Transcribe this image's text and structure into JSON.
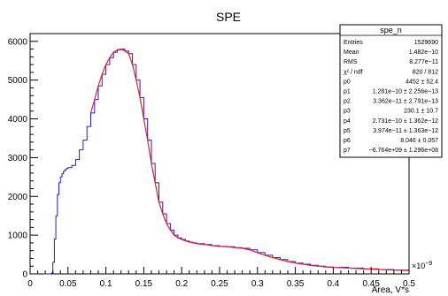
{
  "chart_data": {
    "type": "line",
    "title": "SPE",
    "xlabel": "Area, V*s",
    "ylabel": "",
    "x_exponent_label": "×10",
    "x_exponent_power": "−9",
    "xlim": [
      0,
      0.5
    ],
    "ylim": [
      0,
      6200
    ],
    "x_ticks": [
      "0",
      "0.05",
      "0.1",
      "0.15",
      "0.2",
      "0.25",
      "0.3",
      "0.35",
      "0.4",
      "0.45",
      "0.5"
    ],
    "y_ticks": [
      "0",
      "1000",
      "2000",
      "3000",
      "4000",
      "5000",
      "6000"
    ],
    "grid": false,
    "colors": {
      "histogram": "#2020c0",
      "fit": "#e0203a",
      "frame": "#000000"
    },
    "series": [
      {
        "role": "histogram",
        "x": [
          0.018,
          0.022,
          0.026,
          0.028,
          0.03,
          0.032,
          0.034,
          0.036,
          0.038,
          0.04,
          0.042,
          0.044,
          0.046,
          0.048,
          0.05,
          0.055,
          0.06,
          0.065,
          0.07,
          0.075,
          0.08,
          0.085,
          0.09,
          0.095,
          0.1,
          0.105,
          0.11,
          0.115,
          0.12,
          0.125,
          0.13,
          0.135,
          0.14,
          0.145,
          0.15,
          0.155,
          0.16,
          0.165,
          0.17,
          0.175,
          0.18,
          0.185,
          0.19,
          0.195,
          0.2,
          0.205,
          0.21,
          0.215,
          0.22,
          0.23,
          0.24,
          0.25,
          0.26,
          0.27,
          0.28,
          0.29,
          0.3,
          0.31,
          0.32,
          0.33,
          0.34,
          0.35,
          0.36,
          0.37,
          0.38,
          0.39,
          0.4,
          0.42,
          0.44,
          0.46,
          0.48,
          0.5
        ],
        "y": [
          0,
          0,
          0,
          20,
          300,
          900,
          1500,
          2050,
          2350,
          2500,
          2580,
          2650,
          2690,
          2720,
          2740,
          2800,
          2950,
          3200,
          3450,
          3800,
          4150,
          4500,
          4850,
          5150,
          5400,
          5580,
          5720,
          5780,
          5800,
          5750,
          5680,
          5400,
          5000,
          4550,
          4000,
          3450,
          2850,
          2350,
          1850,
          1550,
          1300,
          1130,
          1000,
          930,
          890,
          850,
          820,
          800,
          780,
          760,
          730,
          710,
          700,
          680,
          660,
          620,
          550,
          480,
          420,
          370,
          320,
          280,
          250,
          220,
          200,
          180,
          170,
          150,
          130,
          115,
          100,
          90
        ]
      },
      {
        "role": "fit",
        "x": [
          0.08,
          0.085,
          0.09,
          0.095,
          0.1,
          0.105,
          0.11,
          0.115,
          0.12,
          0.125,
          0.13,
          0.135,
          0.14,
          0.145,
          0.15,
          0.155,
          0.16,
          0.165,
          0.17,
          0.175,
          0.18,
          0.185,
          0.19,
          0.195,
          0.2,
          0.205,
          0.21,
          0.215,
          0.22,
          0.23,
          0.24,
          0.25,
          0.26,
          0.27,
          0.28,
          0.29,
          0.3,
          0.31,
          0.32,
          0.33,
          0.34,
          0.35,
          0.36,
          0.37,
          0.38,
          0.39,
          0.4,
          0.42,
          0.44,
          0.46,
          0.48,
          0.5
        ],
        "y": [
          4150,
          4500,
          4850,
          5150,
          5400,
          5580,
          5720,
          5780,
          5800,
          5750,
          5680,
          5400,
          5000,
          4550,
          4000,
          3450,
          2850,
          2350,
          1850,
          1550,
          1300,
          1130,
          1000,
          930,
          890,
          850,
          820,
          800,
          780,
          760,
          730,
          710,
          700,
          680,
          660,
          620,
          550,
          480,
          420,
          370,
          320,
          280,
          250,
          220,
          200,
          180,
          170,
          150,
          130,
          115,
          100,
          90
        ]
      }
    ]
  },
  "stats_box": {
    "title": "spe_n",
    "rows": [
      {
        "label": "Entries",
        "value": "1529690"
      },
      {
        "label": "Mean",
        "value": "1.482e−10"
      },
      {
        "label": "RMS",
        "value": "8.277e−11"
      },
      {
        "label": "χ² / ndf",
        "value": "820 / 812"
      },
      {
        "label": "p0",
        "value": "4452 ± 52.4"
      },
      {
        "label": "p1",
        "value": "1.281e−10 ± 2.256e−13"
      },
      {
        "label": "p2",
        "value": "3.362e−11 ± 2.791e−13"
      },
      {
        "label": "p3",
        "value": "230.1 ± 10.7"
      },
      {
        "label": "p4",
        "value": "2.731e−10 ± 1.362e−12"
      },
      {
        "label": "p5",
        "value": "3.974e−11 ± 1.363e−12"
      },
      {
        "label": "p6",
        "value": "8.046 ± 0.057"
      },
      {
        "label": "p7",
        "value": "−6.764e+09 ± 1.296e+08"
      }
    ]
  }
}
